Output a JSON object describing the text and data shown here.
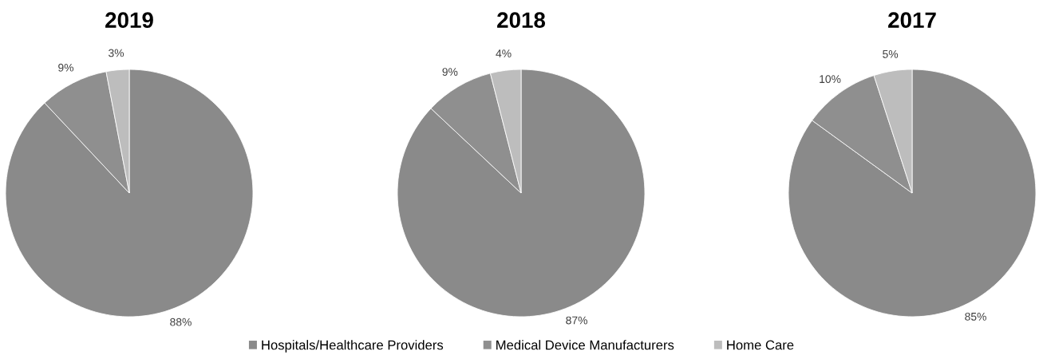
{
  "chart_data": [
    {
      "type": "pie",
      "title": "2019",
      "categories": [
        "Hospitals/Healthcare Providers",
        "Medical Device Manufacturers",
        "Home Care"
      ],
      "values": [
        88,
        9,
        3
      ],
      "value_labels": [
        "88%",
        "9%",
        "3%"
      ],
      "colors": [
        "#8a8a8a",
        "#8f8f8f",
        "#bdbdbd"
      ],
      "legend": "bottom"
    },
    {
      "type": "pie",
      "title": "2018",
      "categories": [
        null,
        null,
        null
      ],
      "values": [
        87,
        9,
        4
      ],
      "value_labels": [
        "87%",
        "9%",
        "4%"
      ],
      "colors": [
        "#8a8a8a",
        "#8f8f8f",
        "#bdbdbd"
      ]
    },
    {
      "type": "pie",
      "title": "2017",
      "categories": [
        null,
        null,
        null
      ],
      "values": [
        85,
        10,
        5
      ],
      "value_labels": [
        "85%",
        "10%",
        "5%"
      ],
      "colors": [
        "#8a8a8a",
        "#8f8f8f",
        "#bdbdbd"
      ]
    }
  ]
}
